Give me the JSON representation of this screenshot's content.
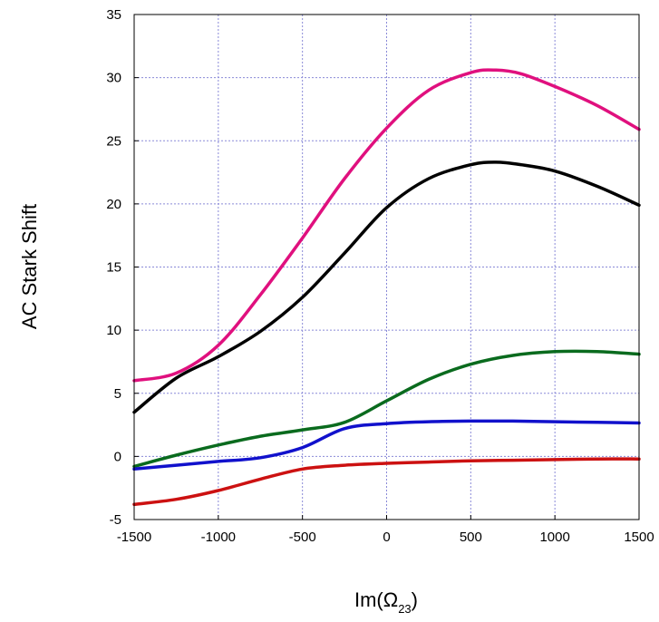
{
  "chart_data": {
    "type": "line",
    "title": "",
    "xlabel": "Im(Ω",
    "xlabel_subscript": "23",
    "xlabel_close": ")",
    "ylabel": "AC Stark Shift",
    "xlim": [
      -1500,
      1500
    ],
    "ylim": [
      -5,
      35
    ],
    "grid": true,
    "legend": "none",
    "x_ticks": [
      -1500,
      -1000,
      -500,
      0,
      500,
      1000,
      1500
    ],
    "x_tick_labels": [
      "-1500",
      "-1000",
      "-500",
      "0",
      "500",
      "1000",
      "1500"
    ],
    "y_ticks": [
      -5,
      0,
      5,
      10,
      15,
      20,
      25,
      30,
      35
    ],
    "y_tick_labels": [
      "-5",
      "0",
      "5",
      "10",
      "15",
      "20",
      "25",
      "30",
      "35"
    ],
    "series": [
      {
        "color": "#e0107e",
        "x": [
          -1500,
          -1250,
          -1000,
          -750,
          -500,
          -250,
          0,
          250,
          500,
          650,
          800,
          1000,
          1250,
          1500
        ],
        "y": [
          6.0,
          6.6,
          8.8,
          12.8,
          17.3,
          22.0,
          26.0,
          29.0,
          30.4,
          30.6,
          30.3,
          29.3,
          27.8,
          25.9
        ]
      },
      {
        "color": "#000000",
        "x": [
          -1500,
          -1250,
          -1000,
          -750,
          -500,
          -250,
          0,
          250,
          500,
          650,
          800,
          1000,
          1250,
          1500
        ],
        "y": [
          3.5,
          6.2,
          7.9,
          9.9,
          12.6,
          16.1,
          19.7,
          22.0,
          23.1,
          23.3,
          23.1,
          22.6,
          21.4,
          19.9
        ]
      },
      {
        "color": "#0a6b1e",
        "x": [
          -1500,
          -1250,
          -1000,
          -750,
          -500,
          -250,
          0,
          250,
          500,
          750,
          1000,
          1250,
          1500
        ],
        "y": [
          -0.8,
          0.1,
          0.9,
          1.6,
          2.1,
          2.7,
          4.4,
          6.1,
          7.3,
          8.0,
          8.3,
          8.3,
          8.1
        ]
      },
      {
        "color": "#1111cc",
        "x": [
          -1500,
          -1250,
          -1000,
          -750,
          -500,
          -250,
          0,
          250,
          500,
          750,
          1000,
          1250,
          1500
        ],
        "y": [
          -1.0,
          -0.7,
          -0.4,
          -0.1,
          0.7,
          2.2,
          2.6,
          2.75,
          2.8,
          2.8,
          2.75,
          2.7,
          2.65
        ]
      },
      {
        "color": "#cc1111",
        "x": [
          -1500,
          -1250,
          -1000,
          -750,
          -500,
          -250,
          0,
          250,
          500,
          750,
          1000,
          1250,
          1500
        ],
        "y": [
          -3.8,
          -3.4,
          -2.7,
          -1.8,
          -1.0,
          -0.7,
          -0.55,
          -0.45,
          -0.35,
          -0.3,
          -0.25,
          -0.2,
          -0.2
        ]
      }
    ]
  }
}
